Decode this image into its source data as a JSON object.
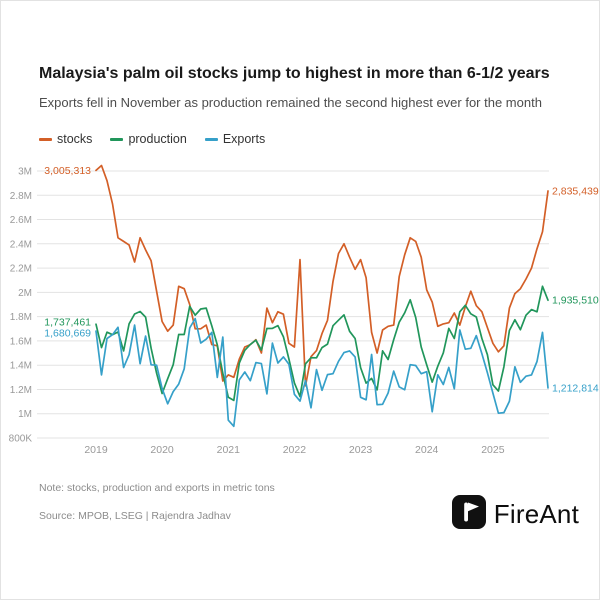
{
  "page": {
    "title": "Malaysia's palm oil stocks jump to highest in more than 6-1/2 years",
    "subtitle": "Exports fell in November as production remained the second highest ever for the month",
    "note": "Note: stocks, production and exports in metric tons",
    "source": "Source: MPOB, LSEG | Rajendra Jadhav",
    "brand": "FireAnt"
  },
  "legend": [
    {
      "label": "stocks",
      "color": "#d35f27"
    },
    {
      "label": "production",
      "color": "#21965b"
    },
    {
      "label": "Exports",
      "color": "#36a0c9"
    }
  ],
  "chart_data": {
    "type": "line",
    "title": "Malaysia's palm oil stocks jump to highest in more than 6-1/2 years",
    "x_unit": "month",
    "x_range": [
      "2019-01",
      "2025-11"
    ],
    "x_tick_labels": [
      "2019",
      "2020",
      "2021",
      "2022",
      "2023",
      "2024",
      "2025"
    ],
    "ylim": [
      800000,
      3000000
    ],
    "grid": true,
    "y_ticks": [
      {
        "value": 3000000,
        "label": "3M"
      },
      {
        "value": 2800000,
        "label": "2.8M"
      },
      {
        "value": 2600000,
        "label": "2.6M"
      },
      {
        "value": 2400000,
        "label": "2.4M"
      },
      {
        "value": 2200000,
        "label": "2.2M"
      },
      {
        "value": 2000000,
        "label": "2M"
      },
      {
        "value": 1800000,
        "label": "1.8M"
      },
      {
        "value": 1600000,
        "label": "1.6M"
      },
      {
        "value": 1400000,
        "label": "1.4M"
      },
      {
        "value": 1200000,
        "label": "1.2M"
      },
      {
        "value": 1000000,
        "label": "1M"
      },
      {
        "value": 800000,
        "label": "800K"
      }
    ],
    "series": [
      {
        "name": "stocks",
        "color": "#d35f27",
        "first_label": "3,005,313",
        "last_label": "2,835,439",
        "values": [
          3005313,
          3045000,
          2920000,
          2730000,
          2450000,
          2420000,
          2390000,
          2250000,
          2450000,
          2350000,
          2260000,
          2010000,
          1760000,
          1680000,
          1730000,
          2050000,
          2030000,
          1900000,
          1700000,
          1700000,
          1730000,
          1570000,
          1560000,
          1270000,
          1320000,
          1300000,
          1450000,
          1550000,
          1570000,
          1610000,
          1500000,
          1870000,
          1750000,
          1840000,
          1820000,
          1580000,
          1550000,
          2270000,
          1230000,
          1470000,
          1520000,
          1660000,
          1770000,
          2090000,
          2320000,
          2400000,
          2290000,
          2190000,
          2270000,
          2120000,
          1670000,
          1500000,
          1690000,
          1720000,
          1730000,
          2130000,
          2310000,
          2450000,
          2420000,
          2290000,
          2020000,
          1920000,
          1720000,
          1740000,
          1750000,
          1830000,
          1730000,
          1880000,
          2010000,
          1890000,
          1840000,
          1710000,
          1580000,
          1510000,
          1560000,
          1870000,
          1990000,
          2030000,
          2110000,
          2200000,
          2360000,
          2500000,
          2835439
        ]
      },
      {
        "name": "production",
        "color": "#21965b",
        "first_label": "1,737,461",
        "last_label": "1,935,510",
        "values": [
          1737461,
          1545000,
          1672000,
          1651000,
          1673000,
          1518000,
          1741000,
          1822000,
          1842000,
          1796000,
          1540000,
          1334000,
          1167000,
          1289000,
          1404000,
          1653000,
          1653000,
          1885000,
          1812000,
          1863000,
          1870000,
          1724000,
          1567000,
          1334000,
          1135000,
          1110000,
          1417000,
          1523000,
          1571000,
          1606000,
          1524000,
          1702000,
          1703000,
          1726000,
          1635000,
          1451000,
          1254000,
          1141000,
          1411000,
          1462000,
          1461000,
          1545000,
          1574000,
          1725000,
          1771000,
          1814000,
          1679000,
          1620000,
          1380000,
          1252000,
          1291000,
          1196000,
          1518000,
          1447000,
          1611000,
          1754000,
          1832000,
          1939000,
          1793000,
          1550000,
          1402000,
          1261000,
          1392000,
          1501000,
          1703000,
          1620000,
          1840000,
          1893000,
          1823000,
          1797000,
          1620000,
          1486000,
          1238000,
          1187000,
          1387000,
          1686000,
          1774000,
          1692000,
          1812000,
          1858000,
          1840000,
          2050000,
          1935510
        ]
      },
      {
        "name": "Exports",
        "color": "#36a0c9",
        "first_label": "1,680,669",
        "last_label": "1,212,814",
        "values": [
          1680669,
          1320000,
          1620000,
          1651000,
          1712000,
          1381000,
          1486000,
          1730000,
          1412000,
          1640000,
          1403000,
          1400000,
          1209000,
          1082000,
          1182000,
          1244000,
          1370000,
          1706000,
          1784000,
          1583000,
          1614000,
          1670000,
          1299000,
          1631000,
          947000,
          896000,
          1279000,
          1344000,
          1272000,
          1421000,
          1413000,
          1163000,
          1582000,
          1418000,
          1468000,
          1408000,
          1160000,
          1104000,
          1273000,
          1049000,
          1364000,
          1193000,
          1322000,
          1330000,
          1432000,
          1504000,
          1518000,
          1468000,
          1135000,
          1115000,
          1488000,
          1074000,
          1078000,
          1171000,
          1351000,
          1221000,
          1198000,
          1404000,
          1397000,
          1330000,
          1346000,
          1016000,
          1321000,
          1241000,
          1382000,
          1205000,
          1690000,
          1532000,
          1539000,
          1644000,
          1494000,
          1338000,
          1170000,
          1004000,
          1009000,
          1102000,
          1387000,
          1259000,
          1309000,
          1320000,
          1430000,
          1670000,
          1212814
        ]
      }
    ]
  }
}
